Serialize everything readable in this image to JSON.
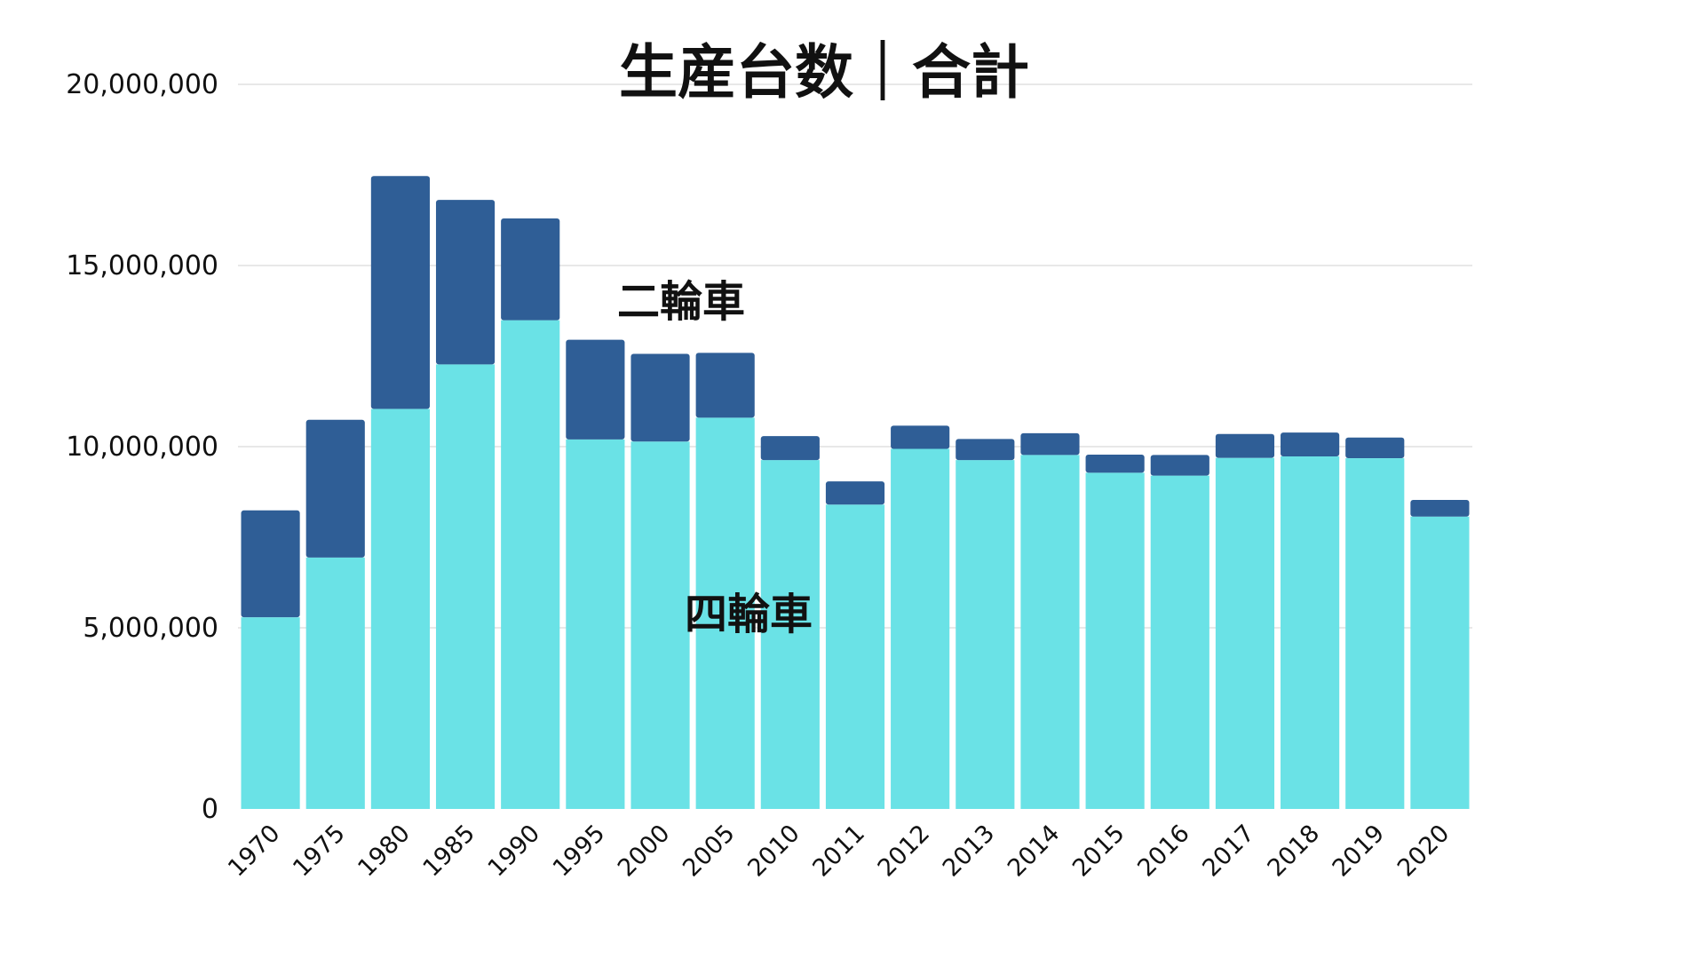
{
  "chart_data": {
    "type": "bar",
    "stacked": true,
    "title": "生産台数｜合計",
    "categories": [
      "1970",
      "1975",
      "1980",
      "1985",
      "1990",
      "1995",
      "2000",
      "2005",
      "2010",
      "2011",
      "2012",
      "2013",
      "2014",
      "2015",
      "2016",
      "2017",
      "2018",
      "2019",
      "2020"
    ],
    "series": [
      {
        "name": "四輪車",
        "color": "#6ae2e6",
        "values": [
          5290000,
          6940000,
          11040000,
          12270000,
          13490000,
          10200000,
          10140000,
          10800000,
          9630000,
          8400000,
          9940000,
          9630000,
          9770000,
          9280000,
          9200000,
          9690000,
          9730000,
          9680000,
          8070000
        ]
      },
      {
        "name": "二輪車",
        "color": "#2f5e96",
        "values": [
          2950000,
          3800000,
          6430000,
          4540000,
          2810000,
          2750000,
          2420000,
          1790000,
          660000,
          640000,
          640000,
          580000,
          600000,
          500000,
          570000,
          660000,
          660000,
          570000,
          460000
        ]
      }
    ],
    "yticks": [
      "0",
      "5,000,000",
      "10,000,000",
      "15,000,000",
      "20,000,000"
    ],
    "ylim": [
      0,
      20000000
    ],
    "grid": true,
    "legend": "inline labels on bars"
  }
}
